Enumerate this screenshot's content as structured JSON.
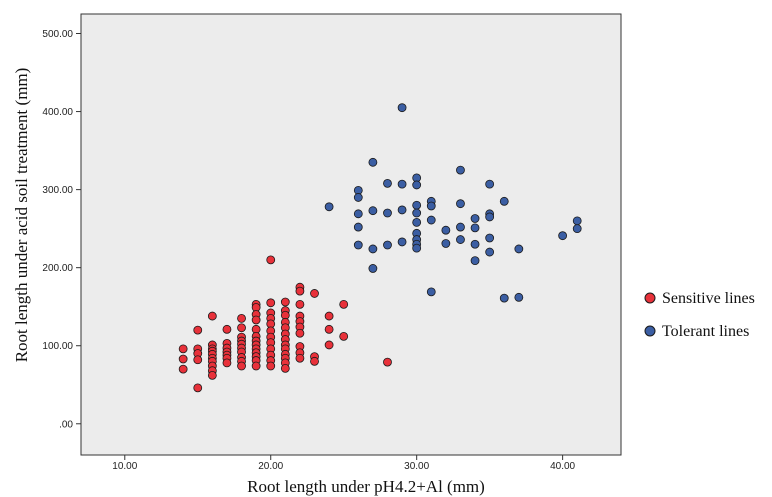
{
  "chart_data": {
    "type": "scatter",
    "title": "",
    "xlabel": "Root length under pH4.2+Al (mm)",
    "ylabel": "Root length under acid soil treatment  (mm)",
    "xlim": [
      7,
      44
    ],
    "ylim": [
      -40,
      525
    ],
    "x_ticks": [
      10,
      20,
      30,
      40
    ],
    "y_ticks": [
      0,
      100,
      200,
      300,
      400,
      500
    ],
    "x_tick_labels": [
      "10.00",
      "20.00",
      "30.00",
      "40.00"
    ],
    "y_tick_labels": [
      ".00",
      "100.00",
      "200.00",
      "300.00",
      "400.00",
      "500.00"
    ],
    "grid": false,
    "legend": "right",
    "plot_background": "#ececec",
    "series": [
      {
        "name": "Sensitive lines",
        "color": "#e8313a",
        "points": [
          [
            14,
            96
          ],
          [
            14,
            83
          ],
          [
            14,
            70
          ],
          [
            15,
            120
          ],
          [
            15,
            96
          ],
          [
            15,
            90
          ],
          [
            15,
            82
          ],
          [
            15,
            46
          ],
          [
            16,
            138
          ],
          [
            16,
            101
          ],
          [
            16,
            96
          ],
          [
            16,
            93
          ],
          [
            16,
            89
          ],
          [
            16,
            84
          ],
          [
            16,
            80
          ],
          [
            16,
            74
          ],
          [
            16,
            68
          ],
          [
            16,
            62
          ],
          [
            17,
            121
          ],
          [
            17,
            103
          ],
          [
            17,
            97
          ],
          [
            17,
            92
          ],
          [
            17,
            88
          ],
          [
            17,
            84
          ],
          [
            17,
            78
          ],
          [
            18,
            135
          ],
          [
            18,
            123
          ],
          [
            18,
            111
          ],
          [
            18,
            106
          ],
          [
            18,
            102
          ],
          [
            18,
            97
          ],
          [
            18,
            92
          ],
          [
            18,
            85
          ],
          [
            18,
            80
          ],
          [
            18,
            74
          ],
          [
            19,
            153
          ],
          [
            19,
            149
          ],
          [
            19,
            140
          ],
          [
            19,
            133
          ],
          [
            19,
            121
          ],
          [
            19,
            112
          ],
          [
            19,
            106
          ],
          [
            19,
            101
          ],
          [
            19,
            96
          ],
          [
            19,
            91
          ],
          [
            19,
            86
          ],
          [
            19,
            81
          ],
          [
            19,
            74
          ],
          [
            20,
            210
          ],
          [
            20,
            155
          ],
          [
            20,
            142
          ],
          [
            20,
            135
          ],
          [
            20,
            128
          ],
          [
            20,
            119
          ],
          [
            20,
            111
          ],
          [
            20,
            104
          ],
          [
            20,
            96
          ],
          [
            20,
            88
          ],
          [
            20,
            81
          ],
          [
            20,
            74
          ],
          [
            21,
            156
          ],
          [
            21,
            145
          ],
          [
            21,
            139
          ],
          [
            21,
            130
          ],
          [
            21,
            123
          ],
          [
            21,
            115
          ],
          [
            21,
            108
          ],
          [
            21,
            101
          ],
          [
            21,
            96
          ],
          [
            21,
            89
          ],
          [
            21,
            84
          ],
          [
            21,
            78
          ],
          [
            21,
            71
          ],
          [
            22,
            175
          ],
          [
            22,
            170
          ],
          [
            22,
            153
          ],
          [
            22,
            138
          ],
          [
            22,
            131
          ],
          [
            22,
            124
          ],
          [
            22,
            116
          ],
          [
            22,
            99
          ],
          [
            22,
            91
          ],
          [
            22,
            84
          ],
          [
            23,
            167
          ],
          [
            23,
            86
          ],
          [
            23,
            80
          ],
          [
            24,
            138
          ],
          [
            24,
            121
          ],
          [
            24,
            101
          ],
          [
            25,
            153
          ],
          [
            25,
            112
          ],
          [
            28,
            79
          ]
        ]
      },
      {
        "name": "Tolerant lines",
        "color": "#3b5ea3",
        "points": [
          [
            24,
            278
          ],
          [
            26,
            299
          ],
          [
            26,
            290
          ],
          [
            26,
            269
          ],
          [
            26,
            252
          ],
          [
            26,
            229
          ],
          [
            27,
            335
          ],
          [
            27,
            273
          ],
          [
            27,
            224
          ],
          [
            27,
            199
          ],
          [
            28,
            308
          ],
          [
            28,
            270
          ],
          [
            28,
            229
          ],
          [
            29,
            405
          ],
          [
            29,
            307
          ],
          [
            29,
            274
          ],
          [
            29,
            233
          ],
          [
            30,
            315
          ],
          [
            30,
            306
          ],
          [
            30,
            280
          ],
          [
            30,
            270
          ],
          [
            30,
            258
          ],
          [
            30,
            244
          ],
          [
            30,
            236
          ],
          [
            30,
            230
          ],
          [
            30,
            225
          ],
          [
            31,
            285
          ],
          [
            31,
            279
          ],
          [
            31,
            261
          ],
          [
            31,
            169
          ],
          [
            32,
            248
          ],
          [
            32,
            231
          ],
          [
            33,
            325
          ],
          [
            33,
            282
          ],
          [
            33,
            252
          ],
          [
            33,
            236
          ],
          [
            34,
            263
          ],
          [
            34,
            251
          ],
          [
            34,
            230
          ],
          [
            34,
            209
          ],
          [
            35,
            307
          ],
          [
            35,
            269
          ],
          [
            35,
            265
          ],
          [
            35,
            238
          ],
          [
            35,
            220
          ],
          [
            36,
            285
          ],
          [
            36,
            161
          ],
          [
            37,
            224
          ],
          [
            37,
            162
          ],
          [
            40,
            241
          ],
          [
            41,
            260
          ],
          [
            41,
            250
          ]
        ]
      }
    ]
  }
}
